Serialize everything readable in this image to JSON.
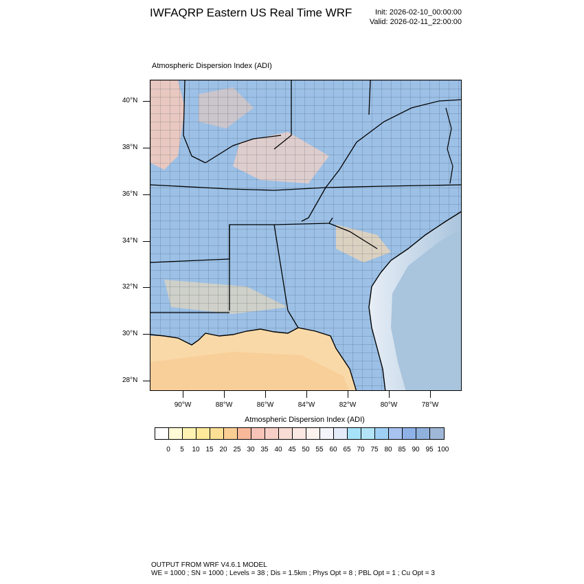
{
  "header": {
    "title": "IWFAQRP Eastern US Real Time WRF",
    "init": "Init: 2026-02-10_00:00:00",
    "valid": "Valid: 2026-02-11_22:00:00"
  },
  "map": {
    "field_label": "Atmospheric Dispersion Index   (ADI)",
    "lat_labels": [
      "40°N",
      "38°N",
      "36°N",
      "34°N",
      "32°N",
      "30°N",
      "28°N"
    ],
    "lon_labels": [
      "90°W",
      "88°W",
      "86°W",
      "84°W",
      "82°W",
      "80°W",
      "78°W"
    ],
    "ocean_color": "#a9c4dd",
    "gulf_color": "#f9d9a8"
  },
  "colorbar": {
    "title": "Atmospheric Dispersion Index  (ADI)",
    "labels": [
      "0",
      "5",
      "10",
      "15",
      "20",
      "25",
      "30",
      "35",
      "40",
      "45",
      "50",
      "55",
      "60",
      "65",
      "70",
      "75",
      "80",
      "85",
      "90",
      "95",
      "100"
    ],
    "colors": [
      "#ffffff",
      "#fffbd6",
      "#fff3b3",
      "#ffe99a",
      "#fddf96",
      "#fbcf94",
      "#fab89a",
      "#f8c4b8",
      "#f7cfc6",
      "#f9dcd4",
      "#fbe8e2",
      "#fcf2ee",
      "#f4f4fc",
      "#e4ecfa",
      "#a6e2f8",
      "#b3e4f8",
      "#9fd0f4",
      "#a8c3ef",
      "#8eb1e8",
      "#8fb1dc",
      "#a0b8d8"
    ]
  },
  "footer": {
    "line1": "OUTPUT FROM WRF V4.6.1 MODEL",
    "line2": "WE = 1000 ; SN = 1000 ; Levels = 38 ; Dis = 1.5km ; Phys Opt = 8 ; PBL Opt = 1 ; Cu Opt = 3"
  }
}
